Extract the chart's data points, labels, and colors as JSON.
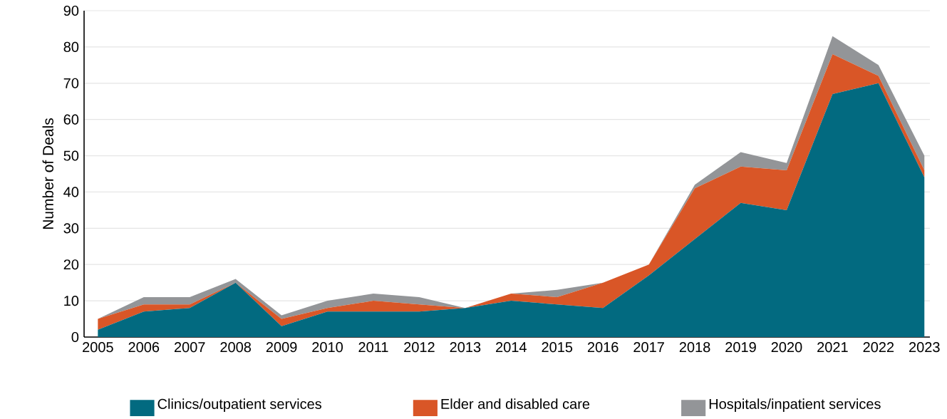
{
  "chart_data": {
    "type": "area",
    "ylabel": "Number of Deals",
    "stacked": true,
    "grid": "y",
    "legend": "bottom",
    "categories": [
      "2005",
      "2006",
      "2007",
      "2008",
      "2009",
      "2010",
      "2011",
      "2012",
      "2013",
      "2014",
      "2015",
      "2016",
      "2017",
      "2018",
      "2019",
      "2020",
      "2021",
      "2022",
      "2023"
    ],
    "ylim": [
      0,
      90
    ],
    "yticks": [
      0,
      10,
      20,
      30,
      40,
      50,
      60,
      70,
      80,
      90
    ],
    "series": [
      {
        "name": "Clinics/outpatient services",
        "color": "#026a80",
        "values": [
          2,
          7,
          8,
          15,
          3,
          7,
          7,
          7,
          8,
          10,
          9,
          8,
          17,
          27,
          37,
          35,
          67,
          70,
          44
        ]
      },
      {
        "name": "Elder and disabled care",
        "color": "#d95627",
        "values": [
          3,
          2,
          1,
          0,
          2,
          1,
          3,
          2,
          0,
          2,
          2,
          7,
          3,
          14,
          10,
          11,
          11,
          2,
          2
        ]
      },
      {
        "name": "Hospitals/inpatient services",
        "color": "#939598",
        "values": [
          0,
          2,
          2,
          1,
          1,
          2,
          2,
          2,
          0,
          0,
          2,
          0,
          0,
          1,
          4,
          2,
          5,
          3,
          4
        ]
      }
    ]
  }
}
